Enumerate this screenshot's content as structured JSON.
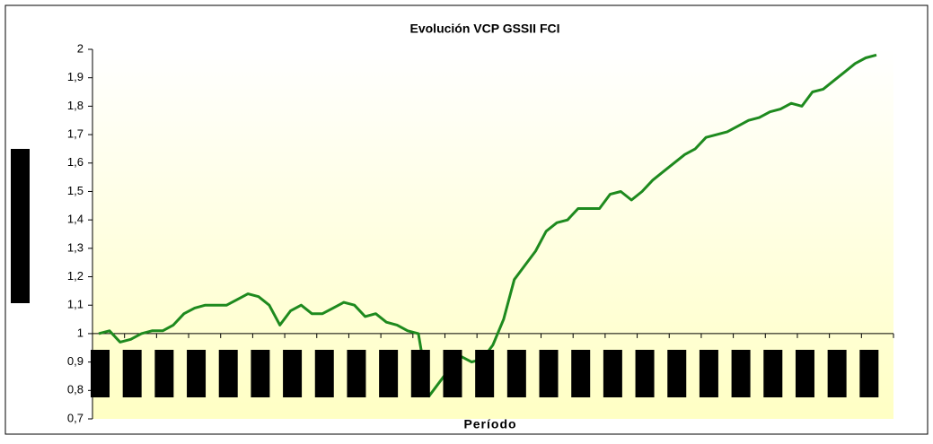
{
  "chart_data": {
    "type": "line",
    "title": "Evolución VCP GSSII FCI",
    "x_label": "Período",
    "categories": [
      null,
      null,
      null,
      null,
      null,
      null,
      null,
      null,
      null,
      null,
      null,
      null,
      null,
      null,
      null,
      null,
      null,
      null,
      null,
      null,
      null,
      null,
      null,
      null,
      null,
      null,
      null,
      null,
      null,
      null,
      null,
      null,
      null,
      null,
      null,
      null,
      null,
      null,
      null,
      null,
      null,
      null,
      null,
      null,
      null,
      null,
      null,
      null,
      null,
      null,
      null,
      null,
      null,
      null,
      null,
      null,
      null,
      null,
      null,
      null,
      null,
      null,
      null,
      null,
      null,
      null,
      null,
      null,
      null,
      null,
      null,
      null,
      null,
      null
    ],
    "series": [
      {
        "name": "VCP",
        "color": "#1e8a1e",
        "values": [
          1.0,
          1.01,
          0.97,
          0.98,
          1.0,
          1.01,
          1.01,
          1.03,
          1.07,
          1.09,
          1.1,
          1.1,
          1.1,
          1.12,
          1.14,
          1.13,
          1.1,
          1.03,
          1.08,
          1.1,
          1.07,
          1.07,
          1.09,
          1.11,
          1.1,
          1.06,
          1.07,
          1.04,
          1.03,
          1.01,
          1.0,
          0.78,
          0.83,
          0.88,
          0.92,
          0.9,
          0.91,
          0.96,
          1.05,
          1.19,
          1.24,
          1.29,
          1.36,
          1.39,
          1.4,
          1.44,
          1.44,
          1.44,
          1.49,
          1.5,
          1.47,
          1.5,
          1.54,
          1.57,
          1.6,
          1.63,
          1.65,
          1.69,
          1.7,
          1.71,
          1.73,
          1.75,
          1.76,
          1.78,
          1.79,
          1.81,
          1.8,
          1.85,
          1.86,
          1.89,
          1.92,
          1.95,
          1.97,
          1.98
        ]
      }
    ],
    "ylim": [
      0.7,
      2
    ],
    "yticks": [
      {
        "value": 0.7,
        "label": "0,7"
      },
      {
        "value": 0.8,
        "label": "0,8"
      },
      {
        "value": 0.9,
        "label": "0,9"
      },
      1,
      {
        "value": 1.1,
        "label": "1,1"
      },
      {
        "value": 1.2,
        "label": "1,2"
      },
      {
        "value": 1.3,
        "label": "1,3"
      },
      {
        "value": 1.4,
        "label": "1,4"
      },
      {
        "value": 1.5,
        "label": "1,5"
      },
      {
        "value": 1.6,
        "label": "1,6"
      },
      {
        "value": 1.7,
        "label": "1,7"
      },
      {
        "value": 1.8,
        "label": "1,8"
      },
      {
        "value": 1.9,
        "label": "1,9"
      },
      2
    ],
    "x_axis_at": 1
  }
}
